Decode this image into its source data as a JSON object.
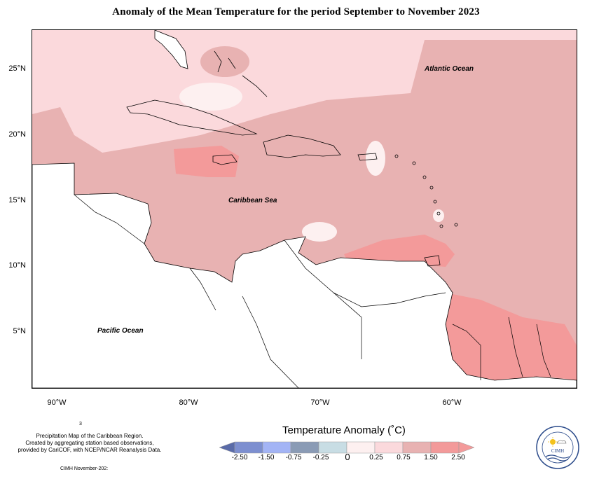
{
  "title": "Anomaly of the Mean Temperature for the period September to November 2023",
  "map": {
    "y_ticks": [
      "25°N",
      "20°N",
      "15°N",
      "10°N",
      "5°N"
    ],
    "x_ticks": [
      "90°W",
      "80°W",
      "70°W",
      "60°W"
    ],
    "labels": {
      "atlantic": "Atlantic Ocean",
      "caribbean": "Caribbean Sea",
      "pacific": "Pacific Ocean"
    }
  },
  "notes": {
    "superscript": "3",
    "description_lines": [
      "Precipitation Map of the Caribbean Region.",
      "Created by aggregating station based observations,",
      "provided by CariCOF, with NCEP/NCAR Reanalysis Data."
    ],
    "credit": "CIMH November-202:"
  },
  "legend": {
    "title": "Temperature Anomaly (˚C)",
    "labels": [
      "-2.50",
      "-1.50",
      "-0.75",
      "-0.25",
      "0",
      "0.25",
      "0.75",
      "1.50",
      "2.50"
    ],
    "colors": [
      "#5a6ba8",
      "#7d8fd0",
      "#a3b4f5",
      "#8a9bb5",
      "#c8dde4",
      "#fdf0f0",
      "#fbd9dc",
      "#e8b2b2",
      "#f39a9a"
    ]
  },
  "logo": {
    "name": "CIMH"
  },
  "colors": {
    "land": "#ffffff",
    "very_light": "#fbd9dc",
    "light": "#e8b2b2",
    "medium": "#f39a9a",
    "near_zero": "#fdf0f0"
  }
}
